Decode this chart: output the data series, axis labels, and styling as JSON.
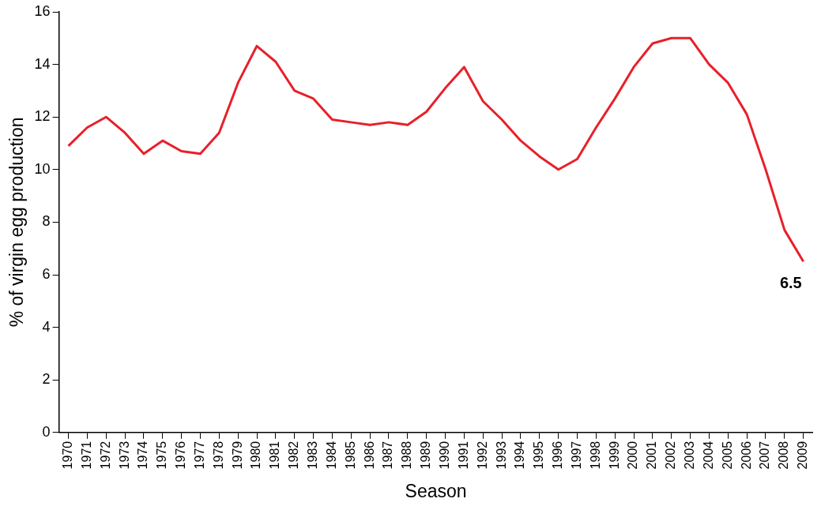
{
  "chart_data": {
    "type": "line",
    "xlabel": "Season",
    "ylabel": "% of virgin egg production",
    "categories": [
      "1970",
      "1971",
      "1972",
      "1973",
      "1974",
      "1975",
      "1976",
      "1977",
      "1978",
      "1979",
      "1980",
      "1981",
      "1982",
      "1983",
      "1984",
      "1985",
      "1986",
      "1987",
      "1988",
      "1989",
      "1990",
      "1991",
      "1992",
      "1993",
      "1994",
      "1995",
      "1996",
      "1997",
      "1998",
      "1999",
      "2000",
      "2001",
      "2002",
      "2003",
      "2004",
      "2005",
      "2006",
      "2007",
      "2008",
      "2009"
    ],
    "series": [
      {
        "color": "#e8202a",
        "values": [
          10.9,
          11.6,
          12.0,
          11.4,
          10.6,
          11.1,
          10.7,
          10.6,
          11.4,
          13.3,
          14.7,
          14.1,
          13.0,
          12.7,
          11.9,
          11.8,
          11.7,
          11.8,
          11.7,
          12.2,
          13.1,
          13.9,
          12.6,
          11.9,
          11.1,
          10.5,
          10.0,
          10.4,
          11.6,
          12.7,
          13.9,
          14.8,
          15.0,
          15.0,
          14.0,
          13.3,
          12.1,
          10.0,
          7.7,
          6.5
        ]
      }
    ],
    "ylim": [
      0,
      16
    ],
    "yticks": [
      0,
      2,
      4,
      6,
      8,
      10,
      12,
      14,
      16
    ],
    "grid": false,
    "legend": false,
    "marker": "none",
    "line_style": "solid",
    "annotations": [
      {
        "text": "6.5",
        "x": "2009",
        "y": 6.5
      }
    ]
  }
}
